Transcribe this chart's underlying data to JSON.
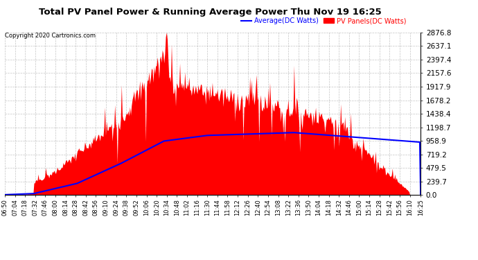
{
  "title": "Total PV Panel Power & Running Average Power Thu Nov 19 16:25",
  "copyright": "Copyright 2020 Cartronics.com",
  "legend_avg": "Average(DC Watts)",
  "legend_pv": "PV Panels(DC Watts)",
  "y_max": 2876.8,
  "y_ticks": [
    0.0,
    239.7,
    479.5,
    719.2,
    958.9,
    1198.7,
    1438.4,
    1678.2,
    1917.9,
    2157.6,
    2397.4,
    2637.1,
    2876.8
  ],
  "pv_color": "#FF0000",
  "avg_color": "#0000FF",
  "bg_color": "#FFFFFF",
  "grid_color": "#AAAAAA",
  "title_color": "#000000",
  "copyright_color": "#000000",
  "x_labels": [
    "06:50",
    "07:04",
    "07:18",
    "07:32",
    "07:46",
    "08:00",
    "08:14",
    "08:28",
    "08:42",
    "08:56",
    "09:10",
    "09:24",
    "09:38",
    "09:52",
    "10:06",
    "10:20",
    "10:34",
    "10:48",
    "11:02",
    "11:16",
    "11:30",
    "11:44",
    "11:58",
    "12:12",
    "12:26",
    "12:40",
    "12:54",
    "13:08",
    "13:22",
    "13:36",
    "13:50",
    "14:04",
    "14:18",
    "14:32",
    "14:46",
    "15:00",
    "15:14",
    "15:28",
    "15:42",
    "15:56",
    "16:10",
    "16:25"
  ]
}
